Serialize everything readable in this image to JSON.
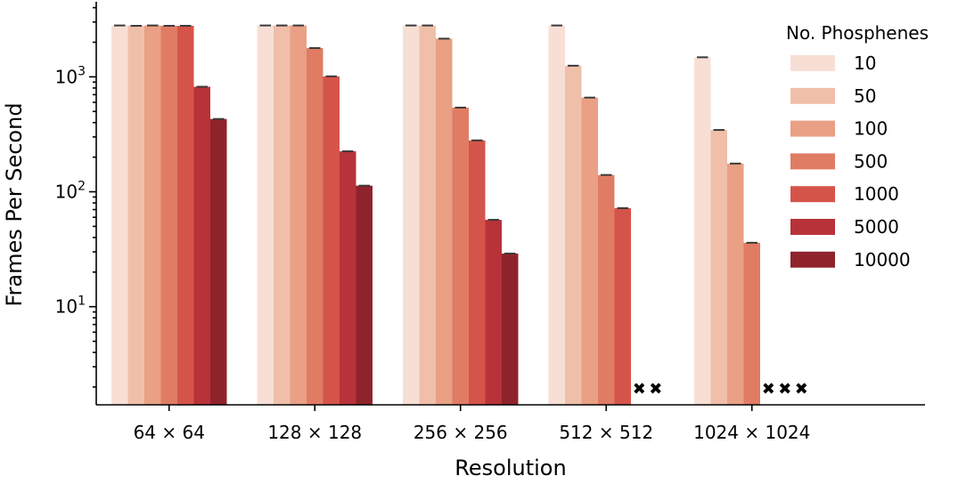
{
  "chart_data": {
    "type": "bar",
    "title": "",
    "xlabel": "Resolution",
    "ylabel": "Frames Per Second",
    "yscale": "log",
    "ylim": [
      1.4,
      4500
    ],
    "grid": false,
    "legend": {
      "title": "No. Phosphenes",
      "placement": "top-right"
    },
    "categories": [
      "64 × 64",
      "128 × 128",
      "256 × 256",
      "512 × 512",
      "1024 × 1024"
    ],
    "y_major_ticks": [
      {
        "value": 10,
        "base": "10",
        "exp": "1"
      },
      {
        "value": 100,
        "base": "10",
        "exp": "2"
      },
      {
        "value": 1000,
        "base": "10",
        "exp": "3"
      }
    ],
    "series": [
      {
        "name": "10",
        "color": "#f8dfd5",
        "values": [
          2800,
          2800,
          2800,
          2800,
          1480
        ]
      },
      {
        "name": "50",
        "color": "#f0bfaa",
        "values": [
          2780,
          2800,
          2800,
          1250,
          345
        ]
      },
      {
        "name": "100",
        "color": "#e9a085",
        "values": [
          2800,
          2800,
          2150,
          660,
          176
        ]
      },
      {
        "name": "500",
        "color": "#e07c64",
        "values": [
          2780,
          1780,
          540,
          140,
          36
        ]
      },
      {
        "name": "1000",
        "color": "#d5544a",
        "values": [
          2780,
          1010,
          280,
          72,
          null
        ]
      },
      {
        "name": "5000",
        "color": "#b83239",
        "values": [
          820,
          225,
          57,
          null,
          null
        ]
      },
      {
        "name": "10000",
        "color": "#8f232c",
        "values": [
          430,
          113,
          29,
          null,
          null
        ]
      }
    ],
    "missing_marker": "✖"
  }
}
